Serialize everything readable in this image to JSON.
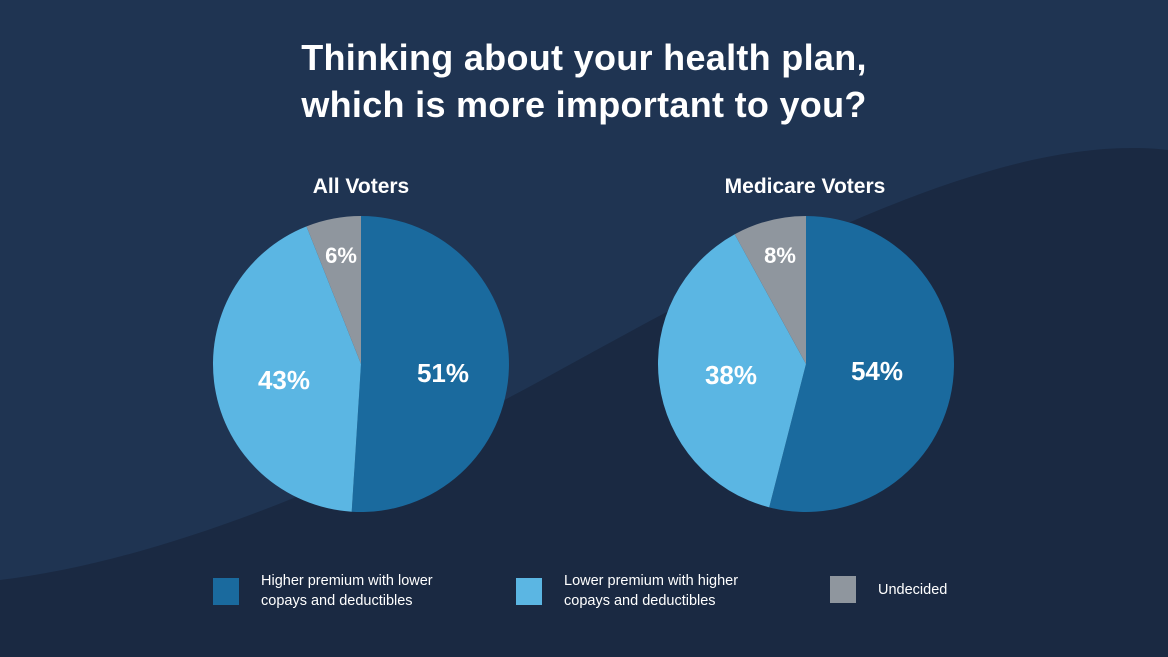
{
  "title": {
    "line1": "Thinking about your health plan,",
    "line2": "which is more important to you?"
  },
  "colors": {
    "background": "#1a2942",
    "higher_premium": "#1a6a9e",
    "lower_premium": "#5bb6e3",
    "undecided": "#8f969e"
  },
  "legend": [
    {
      "line1": "Higher premium with lower",
      "line2": "copays and deductibles",
      "color": "#1a6a9e"
    },
    {
      "line1": "Lower premium with higher",
      "line2": "copays and deductibles",
      "color": "#5bb6e3"
    },
    {
      "line1": "Undecided",
      "line2": "",
      "color": "#8f969e"
    }
  ],
  "chart_data": [
    {
      "type": "pie",
      "title": "All Voters",
      "slices": [
        {
          "category": "Higher premium with lower copays and deductibles",
          "value": 51,
          "label": "51%"
        },
        {
          "category": "Lower premium with higher copays and deductibles",
          "value": 43,
          "label": "43%"
        },
        {
          "category": "Undecided",
          "value": 6,
          "label": "6%"
        }
      ]
    },
    {
      "type": "pie",
      "title": "Medicare Voters",
      "slices": [
        {
          "category": "Higher premium with lower copays and deductibles",
          "value": 54,
          "label": "54%"
        },
        {
          "category": "Lower premium with higher copays and deductibles",
          "value": 38,
          "label": "38%"
        },
        {
          "category": "Undecided",
          "value": 8,
          "label": "8%"
        }
      ]
    }
  ]
}
